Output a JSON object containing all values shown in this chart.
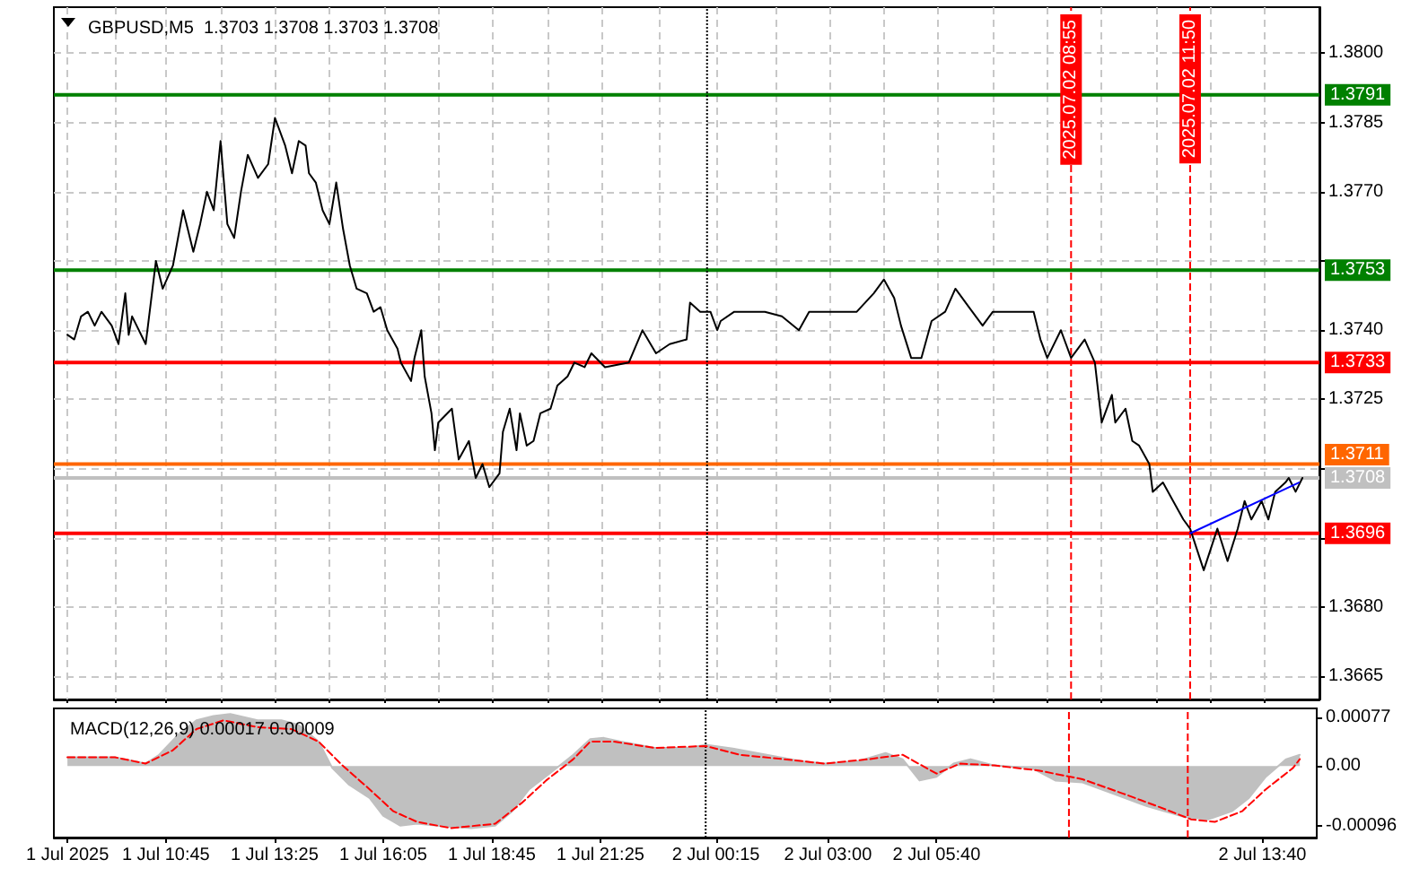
{
  "chart_data": [
    {
      "type": "line",
      "title": "GBPUSD,M5  1.3703 1.3708 1.3703 1.3708",
      "grid": true,
      "tick_labels": "y",
      "xlim": [
        "2025-07-01T08:00",
        "2025-07-02T15:00"
      ],
      "xticks": [
        {
          "value": "2025-07-01T08:20",
          "label": null
        },
        {
          "value": "2025-07-01T09:30",
          "label": null
        },
        {
          "value": "2025-07-01T10:45",
          "label": null
        },
        {
          "value": "2025-07-01T12:05",
          "label": null
        },
        {
          "value": "2025-07-01T13:25",
          "label": null
        },
        {
          "value": "2025-07-01T14:45",
          "label": null
        },
        {
          "value": "2025-07-01T16:05",
          "label": null
        },
        {
          "value": "2025-07-01T17:25",
          "label": null
        },
        {
          "value": "2025-07-01T18:45",
          "label": null
        },
        {
          "value": "2025-07-01T20:05",
          "label": null
        },
        {
          "value": "2025-07-01T21:25",
          "label": null
        },
        {
          "value": "2025-07-01T22:50",
          "label": null
        },
        {
          "value": "2025-07-02T00:15",
          "label": null
        },
        {
          "value": "2025-07-02T01:40",
          "label": null
        },
        {
          "value": "2025-07-02T03:00",
          "label": null
        },
        {
          "value": "2025-07-02T04:20",
          "label": null
        },
        {
          "value": "2025-07-02T05:40",
          "label": null
        },
        {
          "value": "2025-07-02T07:00",
          "label": null
        },
        {
          "value": "2025-07-02T08:20",
          "label": null
        },
        {
          "value": "2025-07-02T09:40",
          "label": null
        },
        {
          "value": "2025-07-02T11:00",
          "label": null
        },
        {
          "value": "2025-07-02T12:20",
          "label": null
        },
        {
          "value": "2025-07-02T13:40",
          "label": null
        }
      ],
      "ylim": [
        1.366,
        1.381
      ],
      "yticks": [
        {
          "value": 1.3665,
          "label": "1.3665"
        },
        {
          "value": 1.368,
          "label": "1.3680"
        },
        {
          "value": 1.3695,
          "label": null
        },
        {
          "value": 1.371,
          "label": null
        },
        {
          "value": 1.3725,
          "label": "1.3725"
        },
        {
          "value": 1.374,
          "label": "1.3740"
        },
        {
          "value": 1.3755,
          "label": null
        },
        {
          "value": 1.377,
          "label": "1.3770"
        },
        {
          "value": 1.3785,
          "label": "1.3785"
        },
        {
          "value": 1.38,
          "label": "1.3800"
        }
      ],
      "series": [
        {
          "color": "#000000",
          "x": [
            "2025-07-01T08:20",
            "2025-07-01T08:30",
            "2025-07-01T08:40",
            "2025-07-01T08:50",
            "2025-07-01T09:00",
            "2025-07-01T09:10",
            "2025-07-01T09:25",
            "2025-07-01T09:35",
            "2025-07-01T09:45",
            "2025-07-01T09:50",
            "2025-07-01T09:55",
            "2025-07-01T10:15",
            "2025-07-01T10:30",
            "2025-07-01T10:40",
            "2025-07-01T10:55",
            "2025-07-01T11:10",
            "2025-07-01T11:25",
            "2025-07-01T11:35",
            "2025-07-01T11:45",
            "2025-07-01T11:55",
            "2025-07-01T12:05",
            "2025-07-01T12:15",
            "2025-07-01T12:25",
            "2025-07-01T12:35",
            "2025-07-01T12:45",
            "2025-07-01T13:00",
            "2025-07-01T13:15",
            "2025-07-01T13:25",
            "2025-07-01T13:40",
            "2025-07-01T13:50",
            "2025-07-01T14:00",
            "2025-07-01T14:10",
            "2025-07-01T14:15",
            "2025-07-01T14:25",
            "2025-07-01T14:35",
            "2025-07-01T14:45",
            "2025-07-01T14:55",
            "2025-07-01T15:05",
            "2025-07-01T15:15",
            "2025-07-01T15:25",
            "2025-07-01T15:40",
            "2025-07-01T15:50",
            "2025-07-01T16:00",
            "2025-07-01T16:10",
            "2025-07-01T16:25",
            "2025-07-01T16:30",
            "2025-07-01T16:45",
            "2025-07-01T16:50",
            "2025-07-01T17:00",
            "2025-07-01T17:05",
            "2025-07-01T17:15",
            "2025-07-01T17:20",
            "2025-07-01T17:25",
            "2025-07-01T17:45",
            "2025-07-01T17:55",
            "2025-07-01T18:10",
            "2025-07-01T18:20",
            "2025-07-01T18:30",
            "2025-07-01T18:40",
            "2025-07-01T18:55",
            "2025-07-01T19:00",
            "2025-07-01T19:10",
            "2025-07-01T19:20",
            "2025-07-01T19:25",
            "2025-07-01T19:35",
            "2025-07-01T19:45",
            "2025-07-01T19:55",
            "2025-07-01T20:10",
            "2025-07-01T20:20",
            "2025-07-01T20:35",
            "2025-07-01T20:45",
            "2025-07-01T21:00",
            "2025-07-01T21:10",
            "2025-07-01T21:30",
            "2025-07-01T22:05",
            "2025-07-01T22:25",
            "2025-07-01T22:45",
            "2025-07-01T23:05",
            "2025-07-01T23:30",
            "2025-07-01T23:35",
            "2025-07-01T23:50",
            "2025-07-02T00:05",
            "2025-07-02T00:15",
            "2025-07-02T00:20",
            "2025-07-02T00:40",
            "2025-07-02T01:25",
            "2025-07-02T01:50",
            "2025-07-02T02:15",
            "2025-07-02T02:30",
            "2025-07-02T03:15",
            "2025-07-02T03:40",
            "2025-07-02T04:05",
            "2025-07-02T04:20",
            "2025-07-02T04:35",
            "2025-07-02T04:45",
            "2025-07-02T05:00",
            "2025-07-02T05:15",
            "2025-07-02T05:30",
            "2025-07-02T05:50",
            "2025-07-02T06:05",
            "2025-07-02T06:25",
            "2025-07-02T06:45",
            "2025-07-02T07:00",
            "2025-07-02T08:00",
            "2025-07-02T08:10",
            "2025-07-02T08:20",
            "2025-07-02T08:40",
            "2025-07-02T08:55",
            "2025-07-02T09:15",
            "2025-07-02T09:30",
            "2025-07-02T09:40",
            "2025-07-02T09:55",
            "2025-07-02T10:00",
            "2025-07-02T10:15",
            "2025-07-02T10:25",
            "2025-07-02T10:35",
            "2025-07-02T10:50",
            "2025-07-02T10:55",
            "2025-07-02T11:10",
            "2025-07-02T11:25",
            "2025-07-02T11:40",
            "2025-07-02T11:50",
            "2025-07-02T12:10",
            "2025-07-02T12:30",
            "2025-07-02T12:45",
            "2025-07-02T13:00",
            "2025-07-02T13:10",
            "2025-07-02T13:20",
            "2025-07-02T13:35",
            "2025-07-02T13:45",
            "2025-07-02T13:55",
            "2025-07-02T14:10",
            "2025-07-02T14:15",
            "2025-07-02T14:25",
            "2025-07-02T14:35"
          ],
          "values": [
            1.3739,
            1.3738,
            1.3743,
            1.3744,
            1.3741,
            1.3744,
            1.3741,
            1.3737,
            1.3748,
            1.3739,
            1.3743,
            1.3737,
            1.3755,
            1.3749,
            1.3754,
            1.3766,
            1.3757,
            1.3763,
            1.377,
            1.3766,
            1.3781,
            1.3763,
            1.376,
            1.377,
            1.3778,
            1.3773,
            1.3776,
            1.3786,
            1.378,
            1.3774,
            1.3781,
            1.378,
            1.3774,
            1.3772,
            1.3766,
            1.3763,
            1.3772,
            1.3762,
            1.3754,
            1.3749,
            1.3748,
            1.3744,
            1.3745,
            1.374,
            1.3736,
            1.3733,
            1.3729,
            1.3734,
            1.374,
            1.373,
            1.3722,
            1.3714,
            1.372,
            1.3723,
            1.3712,
            1.3716,
            1.3708,
            1.3711,
            1.3706,
            1.3709,
            1.3718,
            1.3723,
            1.3714,
            1.3722,
            1.3715,
            1.3716,
            1.3722,
            1.3723,
            1.3728,
            1.373,
            1.3733,
            1.3732,
            1.3735,
            1.3732,
            1.3733,
            1.374,
            1.3735,
            1.3737,
            1.3738,
            1.3746,
            1.3744,
            1.3744,
            1.374,
            1.3742,
            1.3744,
            1.3744,
            1.3743,
            1.374,
            1.3744,
            1.3744,
            1.3744,
            1.3748,
            1.3751,
            1.3747,
            1.3741,
            1.3734,
            1.3734,
            1.3742,
            1.3744,
            1.3749,
            1.3745,
            1.3741,
            1.3744,
            1.3744,
            1.3738,
            1.3734,
            1.374,
            1.3734,
            1.3738,
            1.3733,
            1.372,
            1.3726,
            1.372,
            1.3723,
            1.3716,
            1.3715,
            1.3711,
            1.3705,
            1.3707,
            1.3703,
            1.3699,
            1.3697,
            1.3688,
            1.3697,
            1.369,
            1.3697,
            1.3703,
            1.3699,
            1.3703,
            1.3699,
            1.3705,
            1.3707,
            1.3708,
            1.3705,
            1.3708
          ]
        },
        {
          "color": "#0000ff",
          "x": [
            "2025-07-02T11:50",
            "2025-07-02T14:30"
          ],
          "values": [
            1.3696,
            1.3707
          ]
        }
      ],
      "ref_lines": [
        {
          "axis": "y",
          "value": 1.3791,
          "label": "1.3791",
          "color": "#008000"
        },
        {
          "axis": "y",
          "value": 1.3753,
          "label": "1.3753",
          "color": "#008000"
        },
        {
          "axis": "y",
          "value": 1.3733,
          "label": "1.3733",
          "color": "#ff0000"
        },
        {
          "axis": "y",
          "value": 1.3711,
          "label": "1.3711",
          "color": "#ff6600"
        },
        {
          "axis": "y",
          "value": 1.3708,
          "label": "1.3708",
          "color": "#c0c0c0"
        },
        {
          "axis": "y",
          "value": 1.3696,
          "label": "1.3696",
          "color": "#ff0000"
        },
        {
          "axis": "x",
          "value": "2025-07-02T00:00",
          "color": "#000000",
          "line_style": "dotted"
        },
        {
          "axis": "x",
          "value": "2025-07-02T08:55",
          "label": "2025.07.02 08:55",
          "color": "#ff0000",
          "line_style": "dashed"
        },
        {
          "axis": "x",
          "value": "2025-07-02T11:50",
          "label": "2025.07.02 11:50",
          "color": "#ff0000",
          "line_style": "dashed"
        }
      ]
    },
    {
      "type": "area",
      "title": "MACD(12,26,9) 0.00017 0.00009",
      "grid": false,
      "xlim": [
        "2025-07-01T08:00",
        "2025-07-02T15:00"
      ],
      "xticks": [
        {
          "value": "2025-07-01T08:20",
          "label": "1 Jul 2025"
        },
        {
          "value": "2025-07-01T10:45",
          "label": "1 Jul 10:45"
        },
        {
          "value": "2025-07-01T13:25",
          "label": "1 Jul 13:25"
        },
        {
          "value": "2025-07-01T16:05",
          "label": "1 Jul 16:05"
        },
        {
          "value": "2025-07-01T18:45",
          "label": "1 Jul 18:45"
        },
        {
          "value": "2025-07-01T21:25",
          "label": "1 Jul 21:25"
        },
        {
          "value": "2025-07-02T00:15",
          "label": "2 Jul 00:15"
        },
        {
          "value": "2025-07-02T03:00",
          "label": "2 Jul 03:00"
        },
        {
          "value": "2025-07-02T05:40",
          "label": "2 Jul 05:40"
        },
        {
          "value": "2025-07-02T13:40",
          "label": "2 Jul 13:40"
        }
      ],
      "ylim": [
        -0.00114,
        0.00092
      ],
      "yticks": [
        {
          "value": -0.00096,
          "label": "-0.00096"
        },
        {
          "value": 0,
          "label": "0.00"
        },
        {
          "value": 0.00077,
          "label": "0.00077"
        }
      ],
      "series": [
        {
          "color": "#c0c0c0",
          "x": [
            "2025-07-01T08:20",
            "2025-07-01T08:50",
            "2025-07-01T09:30",
            "2025-07-01T10:15",
            "2025-07-01T10:35",
            "2025-07-01T11:05",
            "2025-07-01T11:30",
            "2025-07-01T11:55",
            "2025-07-01T12:20",
            "2025-07-01T13:00",
            "2025-07-01T13:35",
            "2025-07-01T14:00",
            "2025-07-01T14:30",
            "2025-07-01T14:50",
            "2025-07-01T15:15",
            "2025-07-01T15:45",
            "2025-07-01T16:05",
            "2025-07-01T16:30",
            "2025-07-01T16:55",
            "2025-07-01T17:35",
            "2025-07-01T18:15",
            "2025-07-01T18:50",
            "2025-07-01T19:15",
            "2025-07-01T19:40",
            "2025-07-01T20:10",
            "2025-07-01T20:45",
            "2025-07-01T21:10",
            "2025-07-01T21:30",
            "2025-07-01T21:55",
            "2025-07-01T22:45",
            "2025-07-01T23:35",
            "2025-07-02T00:00",
            "2025-07-02T00:40",
            "2025-07-02T01:30",
            "2025-07-02T02:20",
            "2025-07-02T02:55",
            "2025-07-02T03:45",
            "2025-07-02T04:25",
            "2025-07-02T04:50",
            "2025-07-02T05:15",
            "2025-07-02T05:40",
            "2025-07-02T06:05",
            "2025-07-02T06:30",
            "2025-07-02T07:05",
            "2025-07-02T08:00",
            "2025-07-02T08:35",
            "2025-07-02T09:15",
            "2025-07-02T10:00",
            "2025-07-02T10:50",
            "2025-07-02T11:45",
            "2025-07-02T12:20",
            "2025-07-02T12:55",
            "2025-07-02T13:20",
            "2025-07-02T13:45",
            "2025-07-02T14:15",
            "2025-07-02T14:35"
          ],
          "values": [
            0.00014,
            0.00014,
            0.00014,
            4e-05,
            0.00018,
            0.00052,
            0.00073,
            0.0008,
            0.00083,
            0.00073,
            0.00073,
            0.00066,
            0.00039,
            -3e-05,
            -0.0003,
            -0.00051,
            -0.00079,
            -0.00095,
            -0.00092,
            -0.00096,
            -0.00099,
            -0.00095,
            -0.00072,
            -0.00037,
            -0.00012,
            0.00018,
            0.00043,
            0.00045,
            0.00039,
            0.00029,
            0.00029,
            0.00034,
            0.00028,
            0.00018,
            8e-05,
            4e-05,
            8e-05,
            0.00021,
            0.00011,
            -0.00023,
            -0.00017,
            4e-05,
            0.00011,
            1e-05,
            -3e-05,
            -0.00023,
            -0.00026,
            -0.00044,
            -0.00064,
            -0.00081,
            -0.00085,
            -0.00072,
            -0.00051,
            -0.00017,
            0.00011,
            0.00018
          ]
        },
        {
          "type": "line",
          "color": "#ff0000",
          "line_style": "dashed",
          "x": [
            "2025-07-01T08:20",
            "2025-07-01T09:30",
            "2025-07-01T10:15",
            "2025-07-01T10:55",
            "2025-07-01T11:30",
            "2025-07-01T12:10",
            "2025-07-01T13:00",
            "2025-07-01T13:50",
            "2025-07-01T14:30",
            "2025-07-01T15:05",
            "2025-07-01T15:45",
            "2025-07-01T16:20",
            "2025-07-01T16:55",
            "2025-07-01T17:45",
            "2025-07-01T18:50",
            "2025-07-01T19:30",
            "2025-07-01T20:05",
            "2025-07-01T20:45",
            "2025-07-01T21:10",
            "2025-07-01T21:45",
            "2025-07-01T22:45",
            "2025-07-02T00:00",
            "2025-07-02T00:50",
            "2025-07-02T01:55",
            "2025-07-02T02:55",
            "2025-07-02T04:00",
            "2025-07-02T04:50",
            "2025-07-02T05:40",
            "2025-07-02T06:15",
            "2025-07-02T07:05",
            "2025-07-02T08:10",
            "2025-07-02T09:15",
            "2025-07-02T10:15",
            "2025-07-02T11:05",
            "2025-07-02T11:55",
            "2025-07-02T12:30",
            "2025-07-02T13:10",
            "2025-07-02T13:45",
            "2025-07-02T14:25",
            "2025-07-02T14:35"
          ],
          "values": [
            0.00014,
            0.00014,
            4e-05,
            0.00025,
            0.00059,
            0.00073,
            0.00062,
            0.00059,
            0.00039,
            1e-05,
            -0.00037,
            -0.00072,
            -0.00089,
            -0.00099,
            -0.00092,
            -0.00058,
            -0.00023,
            0.00011,
            0.00039,
            0.00039,
            0.00029,
            0.00032,
            0.00018,
            0.00011,
            4e-05,
            0.00011,
            0.00018,
            -0.00012,
            4e-05,
            1e-05,
            -7e-05,
            -0.00021,
            -0.00044,
            -0.00064,
            -0.00085,
            -0.00089,
            -0.00072,
            -0.00037,
            -3e-05,
            0.00011
          ]
        }
      ],
      "ref_lines": [
        {
          "axis": "x",
          "value": "2025-07-02T00:00",
          "color": "#000000",
          "line_style": "dotted"
        },
        {
          "axis": "x",
          "value": "2025-07-02T08:55",
          "color": "#ff0000",
          "line_style": "dashed"
        },
        {
          "axis": "x",
          "value": "2025-07-02T11:50",
          "color": "#ff0000",
          "line_style": "dashed"
        }
      ]
    }
  ]
}
